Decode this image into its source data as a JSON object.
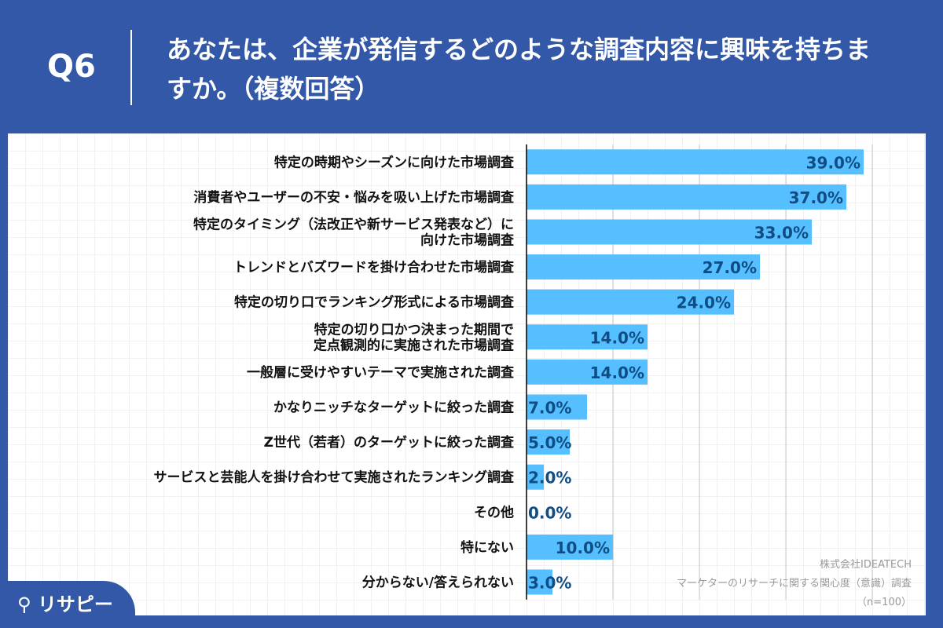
{
  "header": {
    "question_no": "Q6",
    "title": "あなたは、企業が発信するどのような調査内容に興味を持ちますか。（複数回答）"
  },
  "chart_data": {
    "type": "bar",
    "orientation": "horizontal",
    "categories": [
      "特定の時期やシーズンに向けた市場調査",
      "消費者やユーザーの不安・悩みを吸い上げた市場調査",
      "特定のタイミング（法改正や新サービス発表など）に\n向けた市場調査",
      "トレンドとバズワードを掛け合わせた市場調査",
      "特定の切り口でランキング形式による市場調査",
      "特定の切り口かつ決まった期間で\n定点観測的に実施された市場調査",
      "一般層に受けやすいテーマで実施された調査",
      "かなりニッチなターゲットに絞った調査",
      "Z世代（若者）のターゲットに絞った調査",
      "サービスと芸能人を掛け合わせて実施されたランキング調査",
      "その他",
      "特にない",
      "分からない/答えられない"
    ],
    "values": [
      39.0,
      37.0,
      33.0,
      27.0,
      24.0,
      14.0,
      14.0,
      7.0,
      5.0,
      2.0,
      0.0,
      10.0,
      3.0
    ],
    "data_labels": [
      "39.0%",
      "37.0%",
      "33.0%",
      "27.0%",
      "24.0%",
      "14.0%",
      "14.0%",
      "7.0%",
      "5.0%",
      "2.0%",
      "0.0%",
      "10.0%",
      "3.0%"
    ],
    "xlim": [
      0,
      40
    ],
    "grid": true,
    "bar_color": "#55bfff",
    "label_color": "#0f4d84"
  },
  "credit": {
    "company": "株式会社IDEATECH",
    "survey": "マーケターのリサーチに関する関心度（意識）調査",
    "n": "（n=100）"
  },
  "logo": {
    "text": "リサピー"
  }
}
